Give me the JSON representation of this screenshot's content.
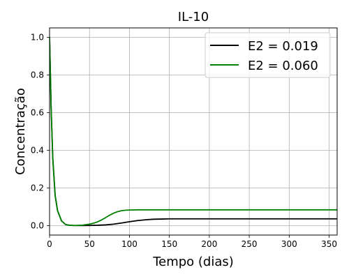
{
  "chart_data": {
    "type": "line",
    "title": "IL-10",
    "xlabel": "Tempo (dias)",
    "ylabel": "Concentração",
    "xlim": [
      0,
      360
    ],
    "ylim": [
      -0.05,
      1.05
    ],
    "xticks": [
      0,
      50,
      100,
      150,
      200,
      250,
      300,
      350
    ],
    "yticks": [
      0.0,
      0.2,
      0.4,
      0.6,
      0.8,
      1.0
    ],
    "xtick_labels": [
      "0",
      "50",
      "100",
      "150",
      "200",
      "250",
      "300",
      "350"
    ],
    "ytick_labels": [
      "0.0",
      "0.2",
      "0.4",
      "0.6",
      "0.8",
      "1.0"
    ],
    "grid": true,
    "legend_position": "top-right",
    "series": [
      {
        "name": "E2 = 0.019",
        "color": "#000000",
        "x": [
          0,
          2,
          4,
          7,
          10,
          15,
          20,
          25,
          30,
          40,
          50,
          60,
          70,
          80,
          90,
          100,
          110,
          120,
          130,
          140,
          150,
          175,
          200,
          250,
          300,
          360
        ],
        "y": [
          1.0,
          0.62,
          0.36,
          0.16,
          0.08,
          0.025,
          0.006,
          0.002,
          0.001,
          0.0005,
          0.001,
          0.002,
          0.004,
          0.008,
          0.014,
          0.021,
          0.027,
          0.031,
          0.034,
          0.035,
          0.036,
          0.036,
          0.036,
          0.036,
          0.036,
          0.036
        ]
      },
      {
        "name": "E2 = 0.060",
        "color": "#008000",
        "x": [
          0,
          2,
          4,
          7,
          10,
          15,
          20,
          25,
          30,
          40,
          50,
          55,
          60,
          65,
          70,
          75,
          80,
          85,
          90,
          95,
          100,
          110,
          120,
          150,
          200,
          250,
          300,
          360
        ],
        "y": [
          1.0,
          0.62,
          0.36,
          0.16,
          0.08,
          0.025,
          0.006,
          0.002,
          0.001,
          0.002,
          0.008,
          0.013,
          0.02,
          0.03,
          0.042,
          0.055,
          0.066,
          0.074,
          0.079,
          0.082,
          0.083,
          0.084,
          0.084,
          0.084,
          0.084,
          0.084,
          0.084,
          0.084
        ]
      }
    ]
  }
}
